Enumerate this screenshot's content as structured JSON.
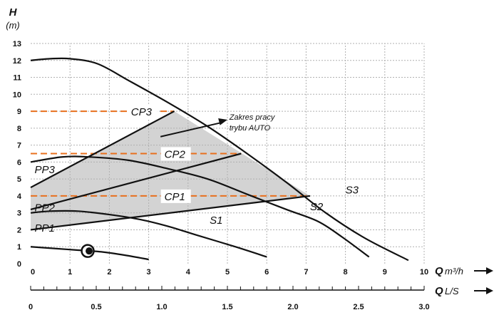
{
  "chart_data": {
    "type": "line",
    "y_axis": {
      "symbol": "H",
      "unit": "(m)",
      "range": [
        0,
        13
      ],
      "ticks": [
        "0",
        "1",
        "2",
        "3",
        "4",
        "5",
        "6",
        "7",
        "8",
        "9",
        "10",
        "11",
        "12",
        "13"
      ]
    },
    "x_axis": {
      "symbol": "Q",
      "unit": "m³/h",
      "range": [
        0,
        10
      ],
      "ticks": [
        "0",
        "1",
        "2",
        "3",
        "4",
        "5",
        "6",
        "7",
        "8",
        "9",
        "10"
      ]
    },
    "x2_axis": {
      "symbol": "Q",
      "unit": "L/S",
      "range": [
        0,
        3.0
      ],
      "ticks": [
        "0",
        "0.5",
        "1.0",
        "1.5",
        "2.0",
        "2.5",
        "3.0"
      ]
    },
    "grid": true,
    "curves": [
      {
        "name": "S3",
        "points": [
          [
            0,
            12.0
          ],
          [
            0.5,
            12.1
          ],
          [
            1,
            12.1
          ],
          [
            1.7,
            11.8
          ],
          [
            2.5,
            10.8
          ],
          [
            3.5,
            9.5
          ],
          [
            4.5,
            8.1
          ],
          [
            5.5,
            6.5
          ],
          [
            6.5,
            4.8
          ],
          [
            7.5,
            3.0
          ],
          [
            8.5,
            1.5
          ],
          [
            9.6,
            0.2
          ]
        ]
      },
      {
        "name": "S2",
        "points": [
          [
            0,
            6.0
          ],
          [
            0.8,
            6.3
          ],
          [
            1.5,
            6.3
          ],
          [
            2.5,
            6.1
          ],
          [
            3.5,
            5.6
          ],
          [
            4.5,
            5.0
          ],
          [
            5.5,
            4.1
          ],
          [
            6.5,
            3.2
          ],
          [
            7.3,
            2.5
          ],
          [
            7.9,
            1.6
          ],
          [
            8.6,
            0.4
          ]
        ]
      },
      {
        "name": "S1",
        "points": [
          [
            0,
            3.0
          ],
          [
            0.5,
            3.1
          ],
          [
            1.2,
            3.1
          ],
          [
            2.0,
            2.9
          ],
          [
            2.8,
            2.6
          ],
          [
            3.5,
            2.2
          ],
          [
            4.2,
            1.7
          ],
          [
            5.2,
            1.0
          ],
          [
            6.0,
            0.4
          ]
        ]
      },
      {
        "name": "PP1",
        "points": [
          [
            0,
            1.0
          ],
          [
            0.6,
            0.9
          ],
          [
            1.2,
            0.8
          ],
          [
            1.8,
            0.7
          ],
          [
            2.4,
            0.5
          ],
          [
            3.0,
            0.25
          ]
        ]
      }
    ],
    "series_labels": [
      {
        "text": "S3",
        "x": 8.0,
        "y": 4.15
      },
      {
        "text": "S2",
        "x": 7.1,
        "y": 3.15
      },
      {
        "text": "S1",
        "x": 4.55,
        "y": 2.35
      },
      {
        "text": "PP3",
        "x": 0.1,
        "y": 5.35
      },
      {
        "text": "PP2",
        "x": 0.1,
        "y": 3.1
      },
      {
        "text": "PP1",
        "x": 0.1,
        "y": 1.9
      }
    ],
    "auto_area": {
      "polygon": [
        [
          0,
          2
        ],
        [
          7.1,
          4.0
        ],
        [
          3.65,
          9.0
        ],
        [
          0,
          4.5
        ]
      ]
    },
    "regulation_lines": [
      {
        "name": "PP3",
        "from": [
          0,
          4.5
        ],
        "to": [
          3.65,
          9.0
        ]
      },
      {
        "name": "PP2",
        "from": [
          0,
          3.2
        ],
        "to": [
          5.35,
          6.5
        ]
      },
      {
        "name": "PP1",
        "from": [
          0,
          2.0
        ],
        "to": [
          7.1,
          4.0
        ]
      }
    ],
    "constant_pressure": [
      {
        "name": "CP3",
        "y": 9.0,
        "x_end": 3.65
      },
      {
        "name": "CP2",
        "y": 6.5,
        "x_end": 5.35
      },
      {
        "name": "CP1",
        "y": 4.0,
        "x_end": 7.1
      }
    ],
    "cp_label_positions": [
      {
        "text": "CP3",
        "x": 2.55,
        "y": 8.75
      },
      {
        "text": "CP2",
        "x": 3.4,
        "y": 6.25
      },
      {
        "text": "CP1",
        "x": 3.4,
        "y": 3.75
      }
    ],
    "annotation": {
      "lines": [
        "Zakres pracy",
        "trybu AUTO"
      ],
      "arrow_from": [
        3.3,
        7.5
      ],
      "arrow_to": [
        5.0,
        8.5
      ],
      "text_at": [
        5.05,
        8.5
      ]
    },
    "marker": {
      "x": 1.45,
      "y": 0.75
    },
    "colors": {
      "curve": "#111111",
      "grid": "#b0b0b0",
      "cp": "#e8701e",
      "area": "#d3d3d3"
    }
  }
}
